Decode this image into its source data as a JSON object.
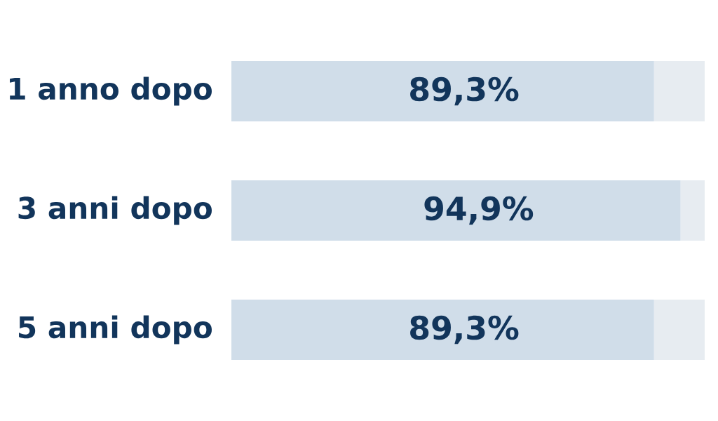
{
  "chart_data": {
    "type": "bar",
    "orientation": "horizontal",
    "stacked": true,
    "categories": [
      "1 anno dopo",
      "3 anni dopo",
      "5 anni dopo"
    ],
    "xlim": [
      0,
      100
    ],
    "tick_labels": "y",
    "series": [
      {
        "color": "#d0dde9",
        "values": [
          89.3,
          94.9,
          89.3
        ],
        "value_labels": [
          "89,3%",
          "94,9%",
          "89,3%"
        ]
      },
      {
        "color": "#e7ecf1",
        "values": [
          10.7,
          5.1,
          10.7
        ]
      }
    ]
  }
}
